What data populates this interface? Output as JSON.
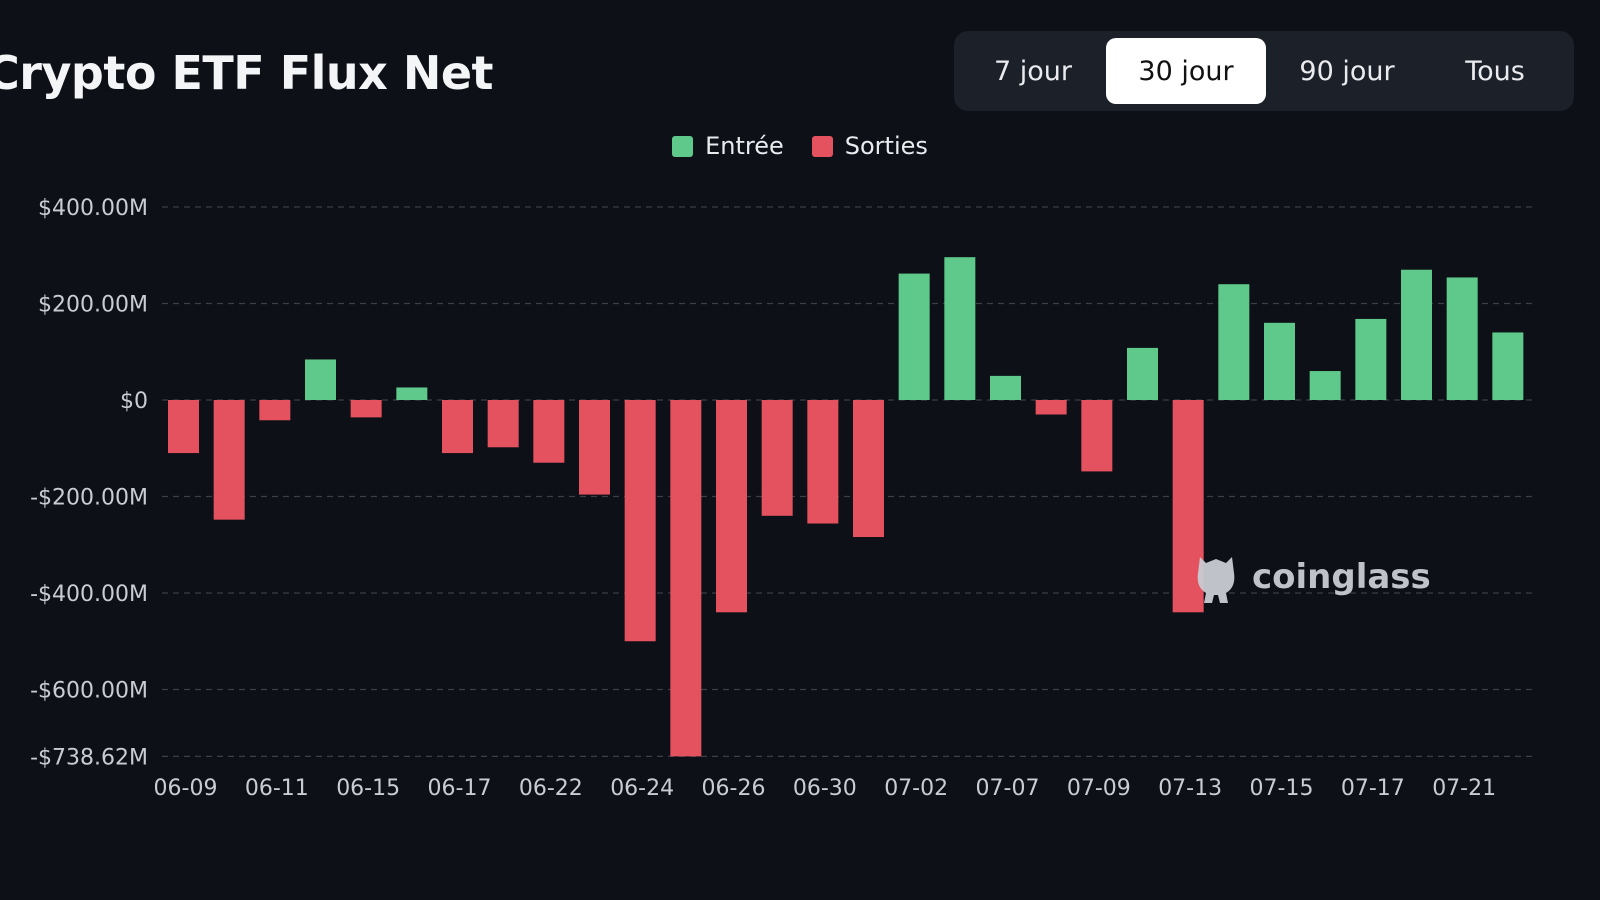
{
  "header": {
    "title": "Crypto ETF Flux Net"
  },
  "range_tabs": [
    {
      "label": "7 jour",
      "active": false
    },
    {
      "label": "30 jour",
      "active": true
    },
    {
      "label": "90 jour",
      "active": false
    },
    {
      "label": "Tous",
      "active": false
    }
  ],
  "legend": {
    "inflow_label": "Entrée",
    "outflow_label": "Sorties"
  },
  "colors": {
    "inflow": "#5ec98a",
    "outflow": "#e5525f",
    "grid": "#3a3f48",
    "axis_text": "#c9ccd2",
    "background": "#0d1016"
  },
  "watermark": {
    "text": "coinglass",
    "icon": "coinglass-logo-icon"
  },
  "chart_data": {
    "type": "bar",
    "title": "Crypto ETF Flux Net",
    "x_tick_labels": [
      "06-09",
      "06-11",
      "06-15",
      "06-17",
      "06-22",
      "06-24",
      "06-26",
      "06-30",
      "07-02",
      "07-07",
      "07-09",
      "07-13",
      "07-15",
      "07-17",
      "07-21"
    ],
    "y_tick_labels": [
      "$400.00M",
      "$200.00M",
      "$0",
      "-$200.00M",
      "-$400.00M",
      "-$600.00M",
      "-$738.62M"
    ],
    "y_ticks": [
      400,
      200,
      0,
      -200,
      -400,
      -600,
      -738.62
    ],
    "ylim": [
      -738.62,
      400
    ],
    "units": "USD millions",
    "values": [
      -110,
      -248,
      -42,
      84,
      -36,
      26,
      -110,
      -98,
      -130,
      -196,
      -500,
      -738.62,
      -440,
      -240,
      -256,
      -284,
      262,
      296,
      50,
      -30,
      -148,
      108,
      -440,
      240,
      160,
      60,
      168,
      270,
      254,
      140
    ],
    "grid": true,
    "legend_position": "top-center",
    "series": [
      {
        "name": "Entrée"
      },
      {
        "name": "Sorties"
      }
    ]
  }
}
